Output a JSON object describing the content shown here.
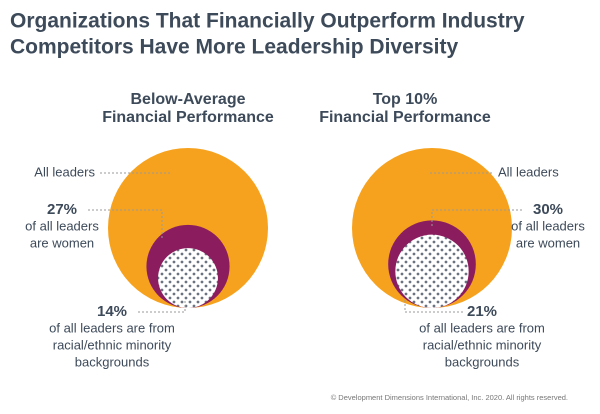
{
  "title": [
    "Organizations That Financially Outperform Industry",
    "Competitors Have More Leadership Diversity"
  ],
  "footer": "© Development Dimensions International, Inc. 2020. All rights reserved.",
  "chart_data": [
    {
      "type": "nested-circle",
      "title": [
        "Below-Average",
        "Financial Performance"
      ],
      "categories": [
        [
          "All leaders"
        ],
        [
          "of all leaders",
          "are women"
        ],
        [
          "of all leaders are from",
          "racial/ethnic minority",
          "backgrounds"
        ]
      ],
      "values": [
        100,
        27,
        14
      ],
      "value_labels": [
        null,
        "27%",
        "14%"
      ],
      "colors": [
        "#f6a21e",
        "#8b1d5f",
        "dots"
      ]
    },
    {
      "type": "nested-circle",
      "title": [
        "Top 10%",
        "Financial Performance"
      ],
      "categories": [
        [
          "All leaders"
        ],
        [
          "of all leaders",
          "are women"
        ],
        [
          "of all leaders are from",
          "racial/ethnic minority",
          "backgrounds"
        ]
      ],
      "values": [
        100,
        30,
        21
      ],
      "value_labels": [
        null,
        "30%",
        "21%"
      ],
      "colors": [
        "#f6a21e",
        "#8b1d5f",
        "dots"
      ]
    }
  ]
}
